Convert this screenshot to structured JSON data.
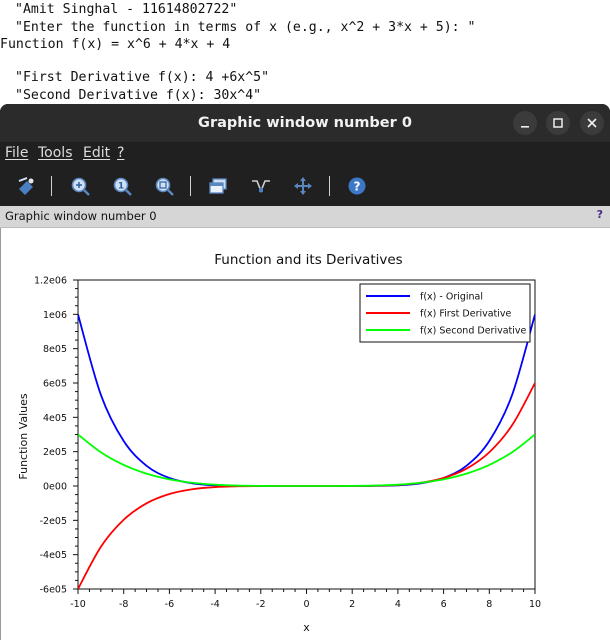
{
  "console": {
    "lines": [
      "\"Amit Singhal - 11614802722\"",
      "\"Enter the function in terms of x (e.g., x^2 + 3*x + 5): \"",
      "Function f(x) = x^6 + 4*x + 4",
      "\"First Derivative f(x): 4 +6x^5\"",
      "\"Second Derivative f(x): 30x^4\""
    ]
  },
  "window": {
    "title": "Graphic window number 0",
    "subtitle": "Graphic window number 0",
    "help_mark": "?",
    "menu": [
      "File",
      "Tools",
      "Edit",
      "?"
    ],
    "toolbar_icons": [
      "rotate-icon",
      "zoom-in-icon",
      "zoom-reset-icon",
      "zoom-area-icon",
      "figure-windows-icon",
      "datatip-icon",
      "pan-icon",
      "help-icon"
    ],
    "controls": [
      "minimize-icon",
      "maximize-icon",
      "close-icon"
    ]
  },
  "chart_data": {
    "type": "line",
    "title": "Function and its Derivatives",
    "xlabel": "x",
    "ylabel": "Function Values",
    "xlim": [
      -10,
      10
    ],
    "ylim": [
      -600000,
      1200000
    ],
    "xticks": [
      -10,
      -8,
      -6,
      -4,
      -2,
      0,
      2,
      4,
      6,
      8,
      10
    ],
    "yticks": [
      -600000,
      -400000,
      -200000,
      0,
      200000,
      400000,
      600000,
      800000,
      1000000,
      1200000
    ],
    "ytick_labels": [
      "-6e05",
      "-4e05",
      "-2e05",
      "0e00",
      "2e05",
      "4e05",
      "6e05",
      "8e05",
      "1e06",
      "1.2e06"
    ],
    "legend_position": "top-right",
    "series": [
      {
        "name": "f(x) - Original",
        "color": "#0000ff",
        "x": [
          -10,
          -9,
          -8,
          -7,
          -6,
          -5,
          -4,
          -3,
          -2,
          -1,
          0,
          1,
          2,
          3,
          4,
          5,
          6,
          7,
          8,
          9,
          10
        ],
        "y": [
          999964,
          531409,
          262116,
          117625,
          46636,
          15609,
          4084,
          721,
          60,
          1,
          4,
          9,
          76,
          745,
          4116,
          15649,
          46684,
          117681,
          262180,
          531481,
          1000044
        ]
      },
      {
        "name": "f(x) First Derivative",
        "color": "#ff0000",
        "x": [
          -10,
          -9,
          -8,
          -7,
          -6,
          -5,
          -4,
          -3,
          -2,
          -1,
          0,
          1,
          2,
          3,
          4,
          5,
          6,
          7,
          8,
          9,
          10
        ],
        "y": [
          -599996,
          -354290,
          -196604,
          -100838,
          -46652,
          -18746,
          -6140,
          -1454,
          -188,
          -2,
          4,
          10,
          196,
          1462,
          6148,
          18754,
          46660,
          100846,
          196612,
          354298,
          600004
        ]
      },
      {
        "name": "f(x) Second Derivative",
        "color": "#00ff00",
        "x": [
          -10,
          -9,
          -8,
          -7,
          -6,
          -5,
          -4,
          -3,
          -2,
          -1,
          0,
          1,
          2,
          3,
          4,
          5,
          6,
          7,
          8,
          9,
          10
        ],
        "y": [
          300000,
          196830,
          122880,
          72030,
          38880,
          18750,
          7680,
          2430,
          480,
          30,
          0,
          30,
          480,
          2430,
          7680,
          18750,
          38880,
          72030,
          122880,
          196830,
          300000
        ]
      }
    ]
  }
}
